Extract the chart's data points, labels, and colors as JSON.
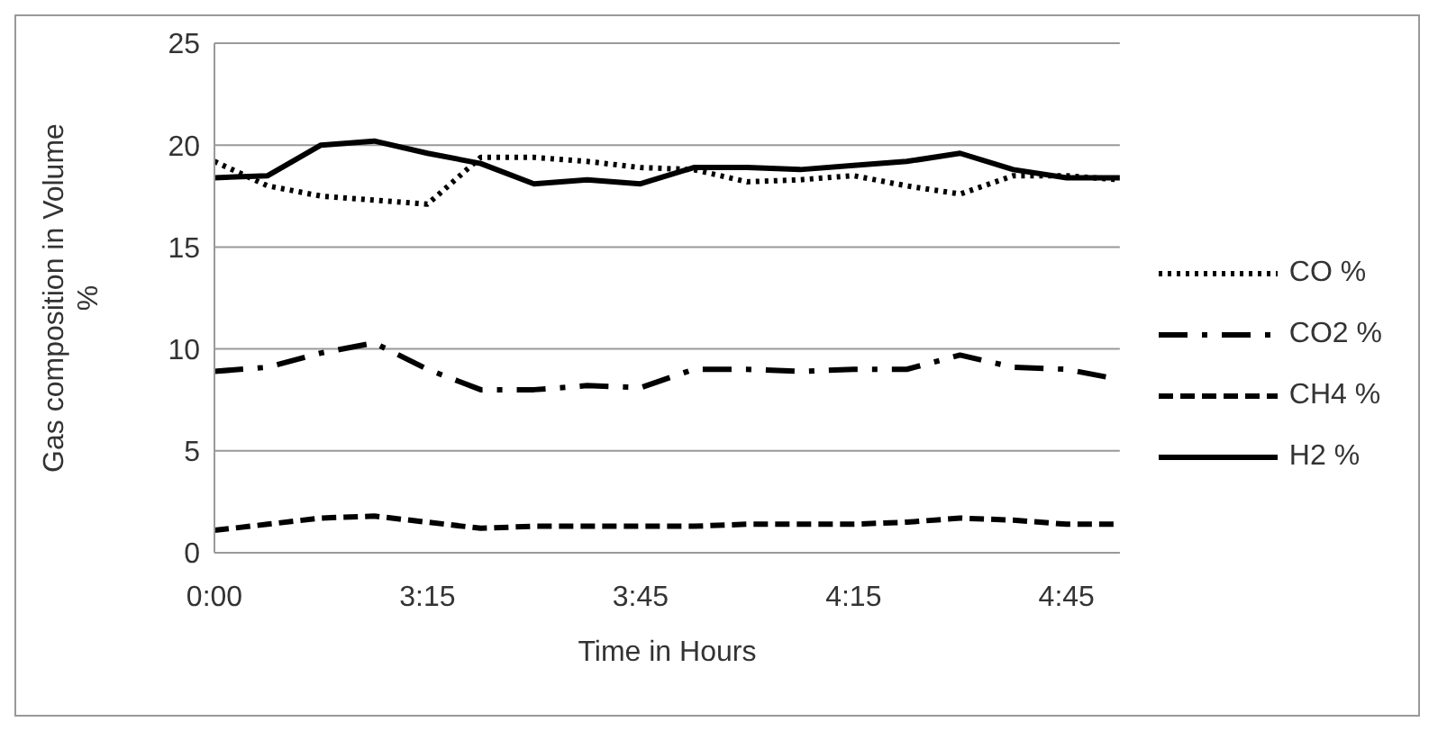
{
  "chart_data": {
    "type": "line",
    "xlabel": "Time in Hours",
    "ylabel": "Gas composition in Volume %",
    "categories": [
      "0:00",
      null,
      null,
      null,
      "3:15",
      null,
      null,
      null,
      "3:45",
      null,
      null,
      null,
      "4:15",
      null,
      null,
      null,
      "4:45",
      null
    ],
    "series": [
      {
        "name": "CO %",
        "color": "#000000",
        "line_style": "dotted",
        "values": [
          19.2,
          18.0,
          17.5,
          17.3,
          17.1,
          19.4,
          19.4,
          19.2,
          18.9,
          18.8,
          18.2,
          18.3,
          18.5,
          18.0,
          17.6,
          18.5,
          18.5,
          18.3
        ]
      },
      {
        "name": "CO2 %",
        "color": "#000000",
        "line_style": "dashdot",
        "values": [
          8.9,
          9.1,
          9.8,
          10.3,
          9.0,
          8.0,
          8.0,
          8.2,
          8.1,
          9.0,
          9.0,
          8.9,
          9.0,
          9.0,
          9.7,
          9.1,
          9.0,
          8.5
        ]
      },
      {
        "name": "CH4 %",
        "color": "#000000",
        "line_style": "dashed",
        "values": [
          1.1,
          1.4,
          1.7,
          1.8,
          1.5,
          1.2,
          1.3,
          1.3,
          1.3,
          1.3,
          1.4,
          1.4,
          1.4,
          1.5,
          1.7,
          1.6,
          1.4,
          1.4
        ]
      },
      {
        "name": "H2 %",
        "color": "#000000",
        "line_style": "solid",
        "values": [
          18.4,
          18.5,
          20.0,
          20.2,
          19.6,
          19.1,
          18.1,
          18.3,
          18.1,
          18.9,
          18.9,
          18.8,
          19.0,
          19.2,
          19.6,
          18.8,
          18.4,
          18.4
        ]
      }
    ],
    "ylim": [
      0,
      25
    ],
    "yticks": [
      0,
      5,
      10,
      15,
      20,
      25
    ],
    "grid": "y",
    "legend": "right",
    "marker": "none"
  }
}
